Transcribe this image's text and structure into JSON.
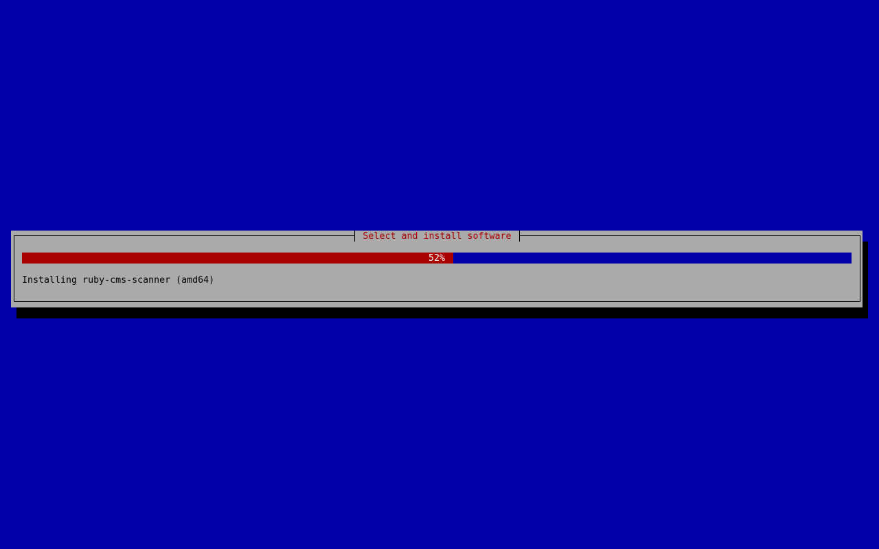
{
  "dialog": {
    "title": "Select and install software",
    "progress": {
      "percent": 52,
      "label": "52%"
    },
    "status": "Installing ruby-cms-scanner (amd64)"
  },
  "colors": {
    "background": "#0000aa",
    "dialog": "#aaaaaa",
    "progress_fill": "#aa0000",
    "title": "#aa0000"
  }
}
